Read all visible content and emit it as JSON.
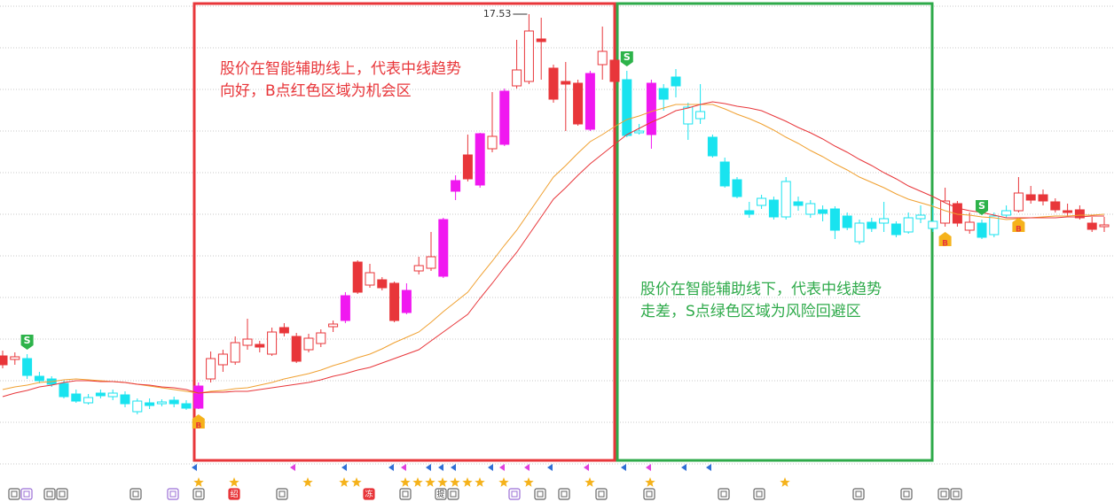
{
  "chart_data": {
    "type": "candlestick",
    "ylim": [
      12.44,
      17.69
    ],
    "open": [
      13.67,
      13.63,
      13.64,
      13.44,
      13.41,
      13.36,
      13.24,
      13.14,
      13.25,
      13.21,
      13.23,
      13.04,
      13.14,
      13.13,
      13.17,
      13.13,
      13.33,
      13.41,
      13.57,
      13.6,
      13.79,
      13.8,
      13.69,
      13.99,
      13.89,
      13.74,
      13.81,
      14.0,
      14.35,
      14.73,
      14.47,
      14.53,
      14.49,
      14.41,
      14.63,
      14.66,
      15.21,
      15.65,
      15.94,
      16.18,
      16.01,
      16.66,
      16.72,
      16.77,
      17.25,
      16.92,
      16.77,
      16.75,
      16.86,
      16.96,
      17.01,
      16.79,
      16.19,
      16.75,
      16.69,
      16.82,
      16.29,
      16.35,
      16.14,
      15.86,
      15.66,
      15.31,
      15.37,
      15.43,
      15.24,
      15.41,
      15.27,
      15.32,
      15.33,
      15.25,
      14.96,
      15.18,
      15.17,
      15.16,
      15.07,
      15.22,
      15.11,
      15.17,
      15.39,
      15.09,
      15.17,
      15.04,
      15.26,
      15.31,
      15.49,
      15.49,
      15.41,
      15.31,
      15.32,
      15.17,
      15.13
    ],
    "high": [
      13.73,
      13.71,
      13.69,
      13.49,
      13.44,
      13.39,
      13.29,
      13.24,
      13.29,
      13.29,
      13.27,
      13.19,
      13.19,
      13.18,
      13.21,
      13.17,
      13.37,
      13.72,
      13.74,
      13.89,
      14.09,
      13.84,
      13.99,
      14.04,
      13.93,
      13.92,
      13.97,
      14.07,
      14.39,
      14.75,
      14.71,
      14.56,
      14.51,
      14.49,
      14.79,
      15.07,
      15.23,
      15.71,
      16.17,
      16.19,
      16.65,
      16.69,
      17.24,
      17.53,
      17.49,
      16.96,
      16.99,
      16.79,
      16.89,
      17.39,
      17.09,
      16.89,
      16.29,
      16.79,
      16.74,
      16.91,
      16.53,
      16.74,
      16.17,
      15.91,
      15.69,
      15.41,
      15.49,
      15.47,
      15.69,
      15.47,
      15.43,
      15.37,
      15.36,
      15.29,
      15.21,
      15.23,
      15.41,
      15.19,
      15.29,
      15.37,
      15.39,
      15.57,
      15.42,
      15.29,
      15.21,
      15.29,
      15.37,
      15.69,
      15.59,
      15.55,
      15.45,
      15.39,
      15.37,
      15.24,
      15.24
    ],
    "low": [
      13.53,
      13.57,
      13.41,
      13.36,
      13.32,
      13.19,
      13.14,
      13.12,
      13.19,
      13.17,
      13.09,
      13.01,
      13.07,
      13.1,
      13.09,
      13.06,
      13.07,
      13.37,
      13.49,
      13.57,
      13.74,
      13.71,
      13.67,
      13.89,
      13.59,
      13.71,
      13.77,
      13.94,
      14.04,
      14.37,
      14.44,
      14.41,
      14.05,
      14.14,
      14.59,
      14.63,
      14.55,
      15.43,
      15.64,
      15.57,
      15.97,
      16.04,
      16.69,
      16.74,
      16.79,
      16.53,
      16.21,
      16.27,
      16.21,
      16.79,
      16.69,
      16.14,
      16.17,
      16.01,
      16.44,
      16.59,
      16.11,
      16.29,
      15.91,
      15.57,
      15.45,
      15.23,
      15.33,
      15.21,
      15.21,
      15.31,
      15.23,
      15.19,
      14.99,
      15.09,
      14.93,
      15.07,
      15.07,
      15.01,
      15.05,
      15.17,
      15.07,
      15.13,
      15.13,
      15.05,
      14.99,
      15.01,
      15.23,
      15.29,
      15.39,
      15.37,
      15.29,
      15.25,
      15.21,
      15.07,
      15.07
    ],
    "close": [
      13.57,
      13.66,
      13.45,
      13.39,
      13.35,
      13.21,
      13.16,
      13.2,
      13.22,
      13.25,
      13.13,
      13.16,
      13.11,
      13.15,
      13.13,
      13.08,
      13.08,
      13.64,
      13.69,
      13.82,
      13.86,
      13.77,
      13.94,
      13.93,
      13.61,
      13.87,
      13.93,
      14.03,
      14.07,
      14.39,
      14.61,
      14.44,
      14.07,
      14.16,
      14.69,
      14.79,
      14.57,
      15.53,
      15.67,
      15.6,
      16.15,
      16.06,
      16.9,
      17.34,
      17.22,
      16.57,
      16.74,
      16.29,
      16.23,
      17.11,
      16.77,
      16.16,
      16.21,
      16.17,
      16.57,
      16.72,
      16.48,
      16.43,
      15.93,
      15.59,
      15.47,
      15.27,
      15.45,
      15.24,
      15.64,
      15.37,
      15.39,
      15.28,
      15.09,
      15.12,
      15.17,
      15.11,
      15.22,
      15.04,
      15.23,
      15.26,
      15.19,
      15.42,
      15.17,
      15.18,
      15.01,
      15.25,
      15.31,
      15.51,
      15.43,
      15.42,
      15.32,
      15.29,
      15.23,
      15.1,
      15.15
    ],
    "colors": [
      "#e8363a",
      "#e8363a",
      "#19e3ef",
      "#19e3ef",
      "#19e3ef",
      "#19e3ef",
      "#19e3ef",
      "#19e3ef",
      "#19e3ef",
      "#19e3ef",
      "#19e3ef",
      "#19e3ef",
      "#19e3ef",
      "#19e3ef",
      "#19e3ef",
      "#19e3ef",
      "#f018f0",
      "#e8363a",
      "#e8363a",
      "#e8363a",
      "#e8363a",
      "#e8363a",
      "#e8363a",
      "#e8363a",
      "#e8363a",
      "#e8363a",
      "#e8363a",
      "#e8363a",
      "#f018f0",
      "#e8363a",
      "#e8363a",
      "#e8363a",
      "#e8363a",
      "#f018f0",
      "#e8363a",
      "#e8363a",
      "#f018f0",
      "#f018f0",
      "#e8363a",
      "#f018f0",
      "#e8363a",
      "#f018f0",
      "#e8363a",
      "#e8363a",
      "#e8363a",
      "#e8363a",
      "#e8363a",
      "#e8363a",
      "#f018f0",
      "#e8363a",
      "#e8363a",
      "#19e3ef",
      "#19e3ef",
      "#f018f0",
      "#19e3ef",
      "#19e3ef",
      "#19e3ef",
      "#19e3ef",
      "#19e3ef",
      "#19e3ef",
      "#19e3ef",
      "#19e3ef",
      "#19e3ef",
      "#19e3ef",
      "#19e3ef",
      "#19e3ef",
      "#19e3ef",
      "#19e3ef",
      "#19e3ef",
      "#19e3ef",
      "#19e3ef",
      "#19e3ef",
      "#19e3ef",
      "#19e3ef",
      "#19e3ef",
      "#19e3ef",
      "#19e3ef",
      "#e8363a",
      "#e8363a",
      "#e8363a",
      "#19e3ef",
      "#19e3ef",
      "#19e3ef",
      "#e8363a",
      "#e8363a",
      "#e8363a",
      "#e8363a",
      "#e8363a",
      "#e8363a",
      "#e8363a",
      "#e8363a"
    ],
    "series": [
      {
        "color": "#f0a030",
        "values": [
          13.29,
          13.32,
          13.34,
          13.37,
          13.38,
          13.4,
          13.41,
          13.4,
          13.39,
          13.38,
          13.37,
          13.35,
          13.33,
          13.31,
          13.29,
          13.27,
          13.25,
          13.27,
          13.28,
          13.3,
          13.31,
          13.34,
          13.37,
          13.41,
          13.44,
          13.47,
          13.51,
          13.56,
          13.6,
          13.65,
          13.69,
          13.75,
          13.82,
          13.88,
          13.94,
          14.05,
          14.17,
          14.28,
          14.39,
          14.57,
          14.74,
          14.92,
          15.09,
          15.29,
          15.49,
          15.69,
          15.82,
          15.96,
          16.09,
          16.17,
          16.26,
          16.34,
          16.38,
          16.43,
          16.47,
          16.51,
          16.51,
          16.51,
          16.51,
          16.46,
          16.4,
          16.35,
          16.29,
          16.22,
          16.14,
          16.07,
          15.99,
          15.92,
          15.84,
          15.77,
          15.69,
          15.63,
          15.57,
          15.5,
          15.44,
          15.4,
          15.36,
          15.31,
          15.27,
          15.26,
          15.24,
          15.23,
          15.21,
          15.22,
          15.23,
          15.24,
          15.25,
          15.25,
          15.26,
          15.26,
          15.27
        ]
      },
      {
        "color": "#e8363a",
        "values": [
          13.21,
          13.25,
          13.28,
          13.32,
          13.34,
          13.37,
          13.39,
          13.39,
          13.38,
          13.38,
          13.37,
          13.35,
          13.34,
          13.32,
          13.31,
          13.29,
          13.25,
          13.26,
          13.26,
          13.27,
          13.27,
          13.29,
          13.31,
          13.33,
          13.35,
          13.37,
          13.4,
          13.44,
          13.47,
          13.51,
          13.54,
          13.59,
          13.64,
          13.69,
          13.74,
          13.84,
          13.94,
          14.04,
          14.14,
          14.32,
          14.49,
          14.67,
          14.84,
          15.04,
          15.24,
          15.44,
          15.57,
          15.71,
          15.84,
          15.95,
          16.06,
          16.17,
          16.24,
          16.31,
          16.37,
          16.44,
          16.47,
          16.51,
          16.54,
          16.52,
          16.49,
          16.47,
          16.44,
          16.38,
          16.32,
          16.25,
          16.19,
          16.12,
          16.04,
          15.97,
          15.89,
          15.82,
          15.74,
          15.67,
          15.59,
          15.53,
          15.47,
          15.4,
          15.34,
          15.31,
          15.29,
          15.26,
          15.23,
          15.23,
          15.23,
          15.23,
          15.23,
          15.24,
          15.24,
          15.25,
          15.25
        ]
      }
    ],
    "signals": [
      null,
      null,
      "S",
      null,
      null,
      null,
      null,
      null,
      null,
      null,
      null,
      null,
      null,
      null,
      null,
      null,
      "B",
      null,
      null,
      null,
      null,
      null,
      null,
      null,
      null,
      null,
      null,
      null,
      null,
      null,
      null,
      null,
      null,
      null,
      null,
      null,
      null,
      null,
      null,
      null,
      null,
      null,
      null,
      null,
      null,
      null,
      null,
      null,
      null,
      null,
      null,
      "S",
      null,
      null,
      null,
      null,
      null,
      null,
      null,
      null,
      null,
      null,
      null,
      null,
      null,
      null,
      null,
      null,
      null,
      null,
      null,
      null,
      null,
      null,
      null,
      null,
      null,
      "B",
      null,
      null,
      "S",
      null,
      null,
      "B",
      null,
      null,
      null,
      null,
      null,
      null,
      null
    ],
    "annotations": [
      {
        "lines": [
          "股价在智能辅助线上，代表中线趋势",
          "向好，B点红色区域为机会区"
        ],
        "color": "#e8363a"
      },
      {
        "lines": [
          "股价在智能辅助线下，代表中线趋势",
          "走差，S点绿色区域为风险回避区"
        ],
        "color": "#2eaa4a"
      }
    ],
    "footer_labels": [
      "绍",
      "冻",
      "提"
    ]
  }
}
